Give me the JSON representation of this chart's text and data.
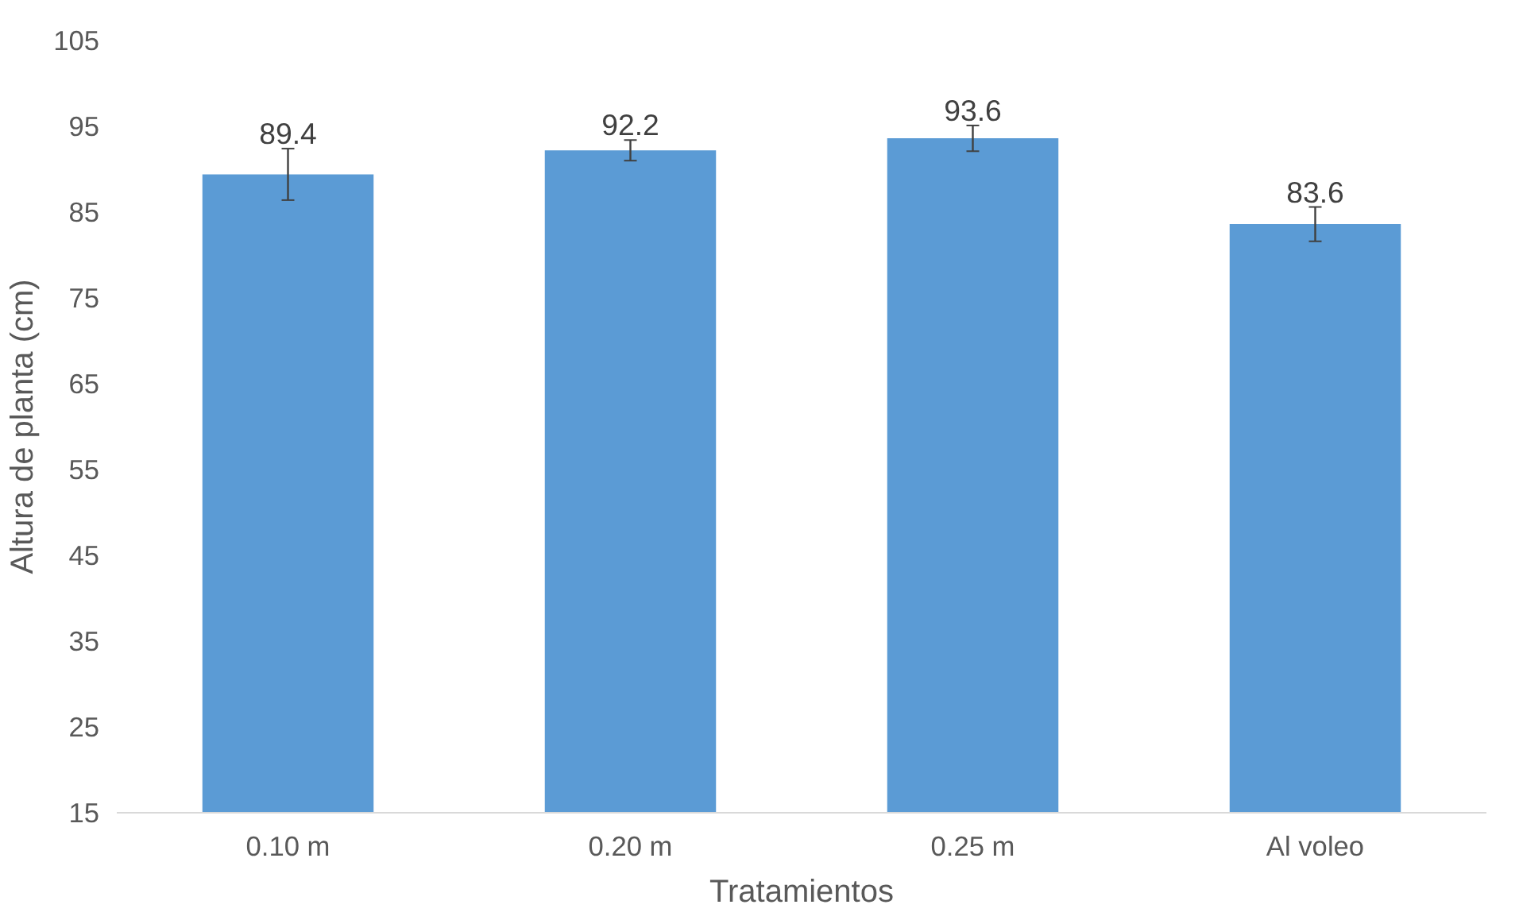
{
  "chart_data": {
    "type": "bar",
    "xlabel": "Tratamientos",
    "ylabel": "Altura de planta (cm)",
    "categories": [
      "0.10 m",
      "0.20 m",
      "0.25 m",
      "Al voleo"
    ],
    "values": [
      89.4,
      92.2,
      93.6,
      83.6
    ],
    "errors": [
      3,
      1.2,
      1.5,
      2
    ],
    "color": "#5b9bd5",
    "data_labels": true,
    "ylim": [
      15,
      105
    ],
    "yticks": [
      15,
      25,
      35,
      45,
      55,
      65,
      75,
      85,
      95,
      105
    ],
    "grid": false
  }
}
